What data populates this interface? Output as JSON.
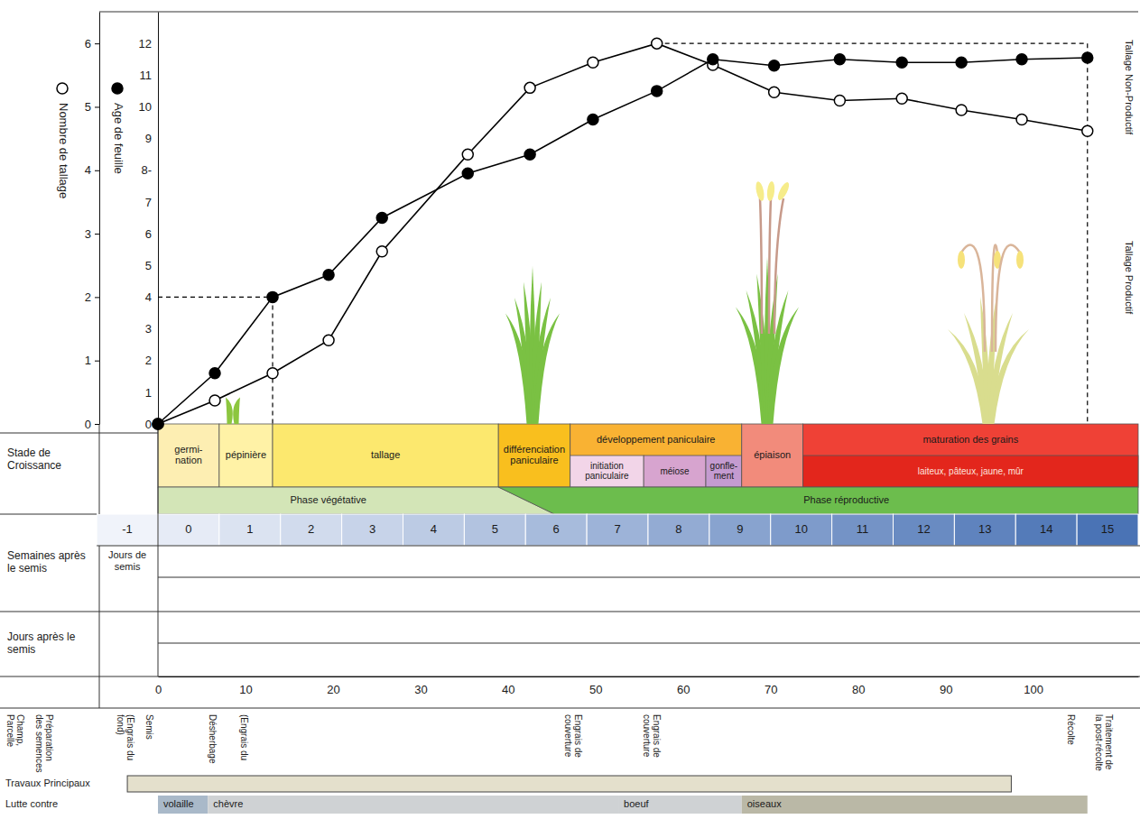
{
  "chart_data": {
    "type": "line",
    "x_label": "Jours après le semis",
    "x": [
      0,
      6.5,
      13.1,
      19.5,
      25.6,
      35.4,
      42.5,
      49.7,
      57,
      63.4,
      70.4,
      77.9,
      85,
      91.8,
      98.7,
      106.2
    ],
    "xlim": [
      0,
      112
    ],
    "xticks": [
      0,
      10,
      20,
      30,
      40,
      50,
      60,
      70,
      80,
      90,
      100
    ],
    "ylim": [
      0,
      6.5
    ],
    "yticks": [
      0,
      1,
      2,
      3,
      4,
      5,
      6
    ],
    "y2lim": [
      0,
      13
    ],
    "y2ticks": [
      0,
      1,
      2,
      3,
      4,
      5,
      6,
      7,
      {
        "value": 8,
        "label": "8-"
      },
      9,
      10,
      11,
      12
    ],
    "series": [
      {
        "name": "Nombre de tallage",
        "color": "#000000",
        "marker": "open-circle",
        "line_style": "solid",
        "values": [
          0,
          0.37,
          0.8,
          1.32,
          2.72,
          4.25,
          5.3,
          5.7,
          6,
          5.66,
          5.23,
          5.1,
          5.13,
          4.95,
          4.8,
          4.62
        ]
      },
      {
        "name": "Age de feuille",
        "color": "#000000",
        "marker": "filled-circle",
        "line_style": "solid",
        "axis": "y2",
        "values": [
          0,
          1.6,
          4,
          4.7,
          6.5,
          7.9,
          8.5,
          9.6,
          10.5,
          11.5,
          11.3,
          11.5,
          11.4,
          11.4,
          11.5,
          11.55
        ]
      }
    ],
    "annotations": [
      "Tallage Non-Productif",
      "Tallage Productif"
    ]
  },
  "stages": {
    "label": "Stade de Croissance",
    "items": [
      {
        "label": "germi-nation",
        "start": 0,
        "end": 7,
        "color": "#fdeeb2"
      },
      {
        "label": "pépinière",
        "start": 7,
        "end": 13.1,
        "color": "#fff2a6"
      },
      {
        "label": "tallage",
        "start": 13.1,
        "end": 38.9,
        "color": "#fce86e"
      },
      {
        "label": "différenciation paniculaire",
        "start": 38.9,
        "end": 47.1,
        "color": "#f9bf1e"
      },
      {
        "label": "développement paniculaire",
        "start": 47.1,
        "end": 66.7,
        "color": "#f9b233",
        "substages": [
          {
            "label": "initiation paniculaire",
            "start": 47.1,
            "end": 55.5,
            "color": "#f2d5e8"
          },
          {
            "label": "méiose",
            "start": 55.5,
            "end": 62.6,
            "color": "#d7a4cf"
          },
          {
            "label": "gonfle-ment",
            "start": 62.6,
            "end": 66.7,
            "color": "#c49bd0"
          }
        ]
      },
      {
        "label": "épiaison",
        "start": 66.7,
        "end": 73.7,
        "color": "#f28b7b"
      },
      {
        "label": "maturation des grains",
        "start": 73.7,
        "end": 112,
        "color": "#ef4136",
        "substages": [
          {
            "label": "laiteux, pâteux, jaune, mûr",
            "start": 73.7,
            "end": 112,
            "color": "#e3261c"
          }
        ]
      }
    ]
  },
  "phases": [
    {
      "label": "Phase végétative",
      "start": 0,
      "end": 45.3,
      "color": "#d3e5b7"
    },
    {
      "label": "Phase réproductive",
      "start": 38.9,
      "end": 112,
      "color": "#6cbd4d"
    }
  ],
  "weeks": {
    "label": "Semaines après le semis",
    "values": [
      -1,
      0,
      1,
      2,
      3,
      4,
      5,
      6,
      7,
      8,
      9,
      10,
      11,
      12,
      13,
      14,
      15
    ],
    "sowing_label": "Jours de semis"
  },
  "operations": {
    "before": [
      "Champ, Parcelle",
      "Préparation des semences"
    ],
    "items": [
      {
        "label": "(Engrais du fond)",
        "day": -3.8
      },
      {
        "label": "Semis",
        "day": -1
      },
      {
        "label": "Désherbage",
        "day": 6.2
      },
      {
        "label": "(Engrais du",
        "day": 9.8
      },
      {
        "label": "Engrais de couverture",
        "day": 47.4
      },
      {
        "label": "Engrais de couverture",
        "day": 56.4
      },
      {
        "label": "Récolte",
        "day": 104.3
      },
      {
        "label": "Traitement de la post-récolte",
        "day": 108
      }
    ]
  },
  "main_work": {
    "label": "Travaux Principaux",
    "start": -3.5,
    "end": 97.5
  },
  "pest_control": {
    "label": "Lutte contre",
    "items": [
      {
        "label": "volaille",
        "start": 0,
        "end": 5.7,
        "color": "#a9b9c9"
      },
      {
        "label": "chèvre",
        "start": 5.7,
        "end": 52.6,
        "color": "#cfd2d4"
      },
      {
        "label": "boeuf",
        "start": 52.6,
        "end": 66.7,
        "color": "#cfd2d4"
      },
      {
        "label": "oiseaux",
        "start": 66.7,
        "end": 106.2,
        "color": "#bab8a6"
      }
    ]
  }
}
